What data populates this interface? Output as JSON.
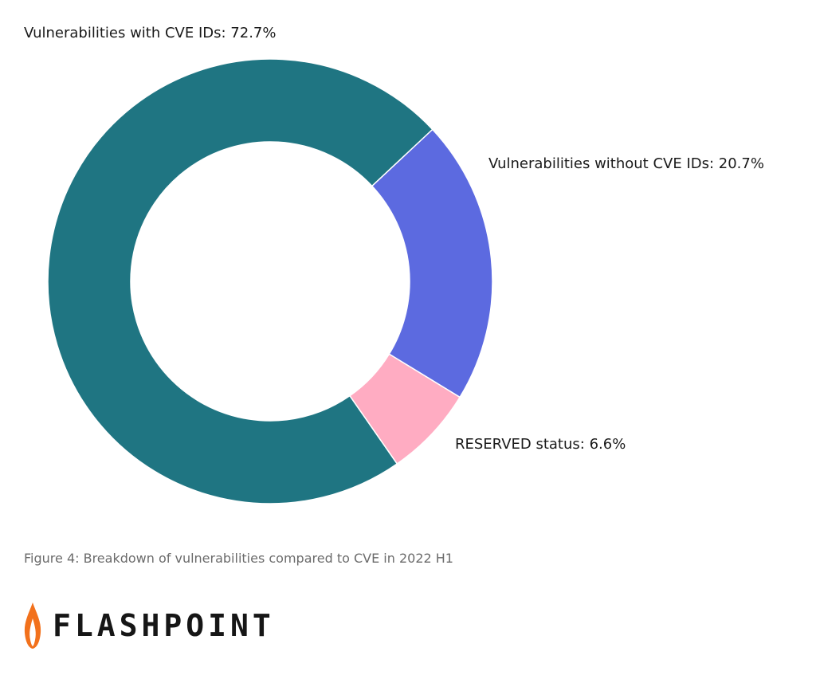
{
  "chart_data": {
    "type": "pie",
    "donut": true,
    "slices": [
      {
        "label": "Vulnerabilities with CVE IDs: 72.7%",
        "value": 72.7,
        "color": "#1f7582"
      },
      {
        "label": "Vulnerabilities without CVE IDs: 20.7%",
        "value": 20.7,
        "color": "#5c6ae0"
      },
      {
        "label": "RESERVED status: 6.6%",
        "value": 6.6,
        "color": "#ffacc2"
      }
    ],
    "title": "",
    "legend": "none"
  },
  "caption": "Figure 4: Breakdown of vulnerabilities compared to CVE in 2022 H1",
  "brand": {
    "name": "FLASHPOINT",
    "logo_icon": "flame-icon",
    "flame_color": "#f2711c"
  }
}
